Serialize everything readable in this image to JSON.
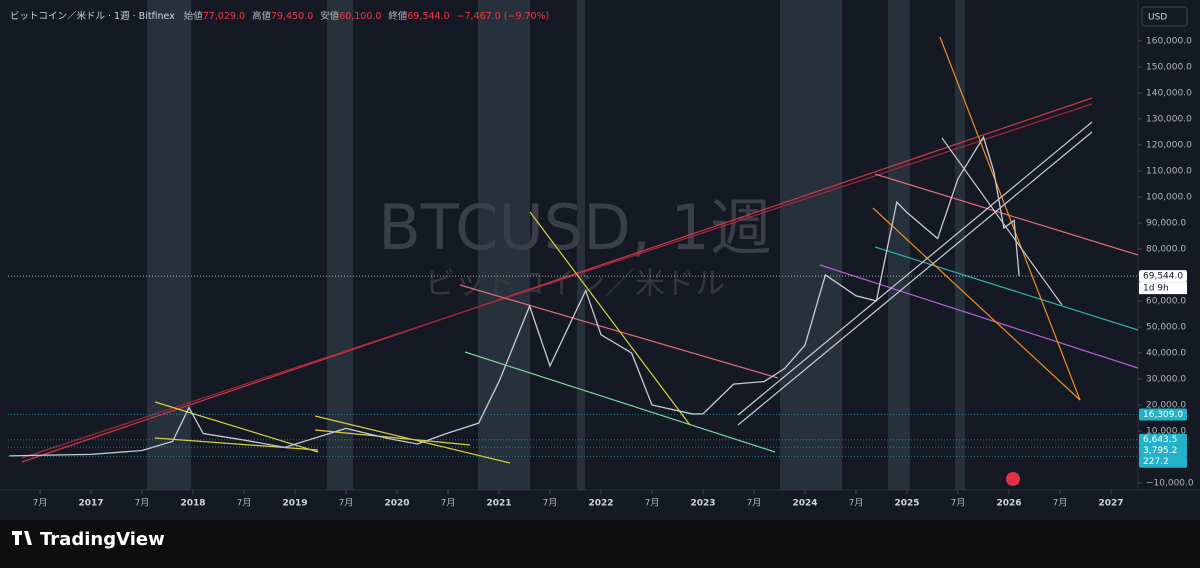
{
  "chart_data": {
    "type": "line",
    "header": {
      "symbol": "ビットコイン／米ドル · 1週 · Bitfinex",
      "ohlc": [
        {
          "label": "始値",
          "value": "77,029.0"
        },
        {
          "label": "高値",
          "value": "79,450.0"
        },
        {
          "label": "安値",
          "value": "60,100.0"
        },
        {
          "label": "終値",
          "value": "69,544.0"
        }
      ],
      "change": "−7,467.0 (−9.70%)"
    },
    "watermark": {
      "title": "BTCUSD, 1週",
      "subtitle": "ビットコイン／米ドル"
    },
    "currency": "USD",
    "brand": "TradingView",
    "x": [
      2016.2,
      2016.5,
      2017.0,
      2017.5,
      2017.8,
      2017.96,
      2018.1,
      2018.5,
      2018.9,
      2019.5,
      2019.9,
      2020.2,
      2020.5,
      2020.8,
      2021.0,
      2021.3,
      2021.5,
      2021.85,
      2022.0,
      2022.3,
      2022.5,
      2022.9,
      2023.0,
      2023.3,
      2023.6,
      2023.8,
      2024.0,
      2024.2,
      2024.5,
      2024.7,
      2024.9,
      2025.0,
      2025.3,
      2025.5,
      2025.75,
      2025.85,
      2025.95,
      2026.05,
      2026.1
    ],
    "series": [
      {
        "name": "BTCUSD",
        "color": "#c8cbd3",
        "values": [
          420,
          650,
          1000,
          2500,
          6000,
          19000,
          9000,
          6500,
          3700,
          11000,
          7200,
          5000,
          9200,
          13000,
          29000,
          58000,
          35000,
          64000,
          47000,
          40000,
          20000,
          16500,
          16600,
          28000,
          29000,
          34000,
          43000,
          70000,
          62000,
          60000,
          98000,
          94000,
          84000,
          107000,
          123000,
          110000,
          88000,
          91000,
          69544
        ]
      }
    ],
    "shaded_ranges": [
      [
        2017.549,
        2017.98
      ],
      [
        2019.314,
        2019.569
      ],
      [
        2020.794,
        2021.304
      ],
      [
        2021.765,
        2021.843
      ],
      [
        2023.755,
        2024.363
      ],
      [
        2024.814,
        2025.029
      ],
      [
        2025.471,
        2025.569
      ]
    ],
    "levels": [
      {
        "value": 69544,
        "label": "69,544.0",
        "color": "#ffffff"
      },
      {
        "value": 16309,
        "label": "16,309.0",
        "color": "#22b3c9"
      },
      {
        "value": 6643.5,
        "label": "6,643.5",
        "color": "#22b3c9"
      },
      {
        "value": 3795.2,
        "label": "3,795.2",
        "color": "#22b3c9"
      },
      {
        "value": 227.2,
        "label": "227.2",
        "color": "#22b3c9"
      }
    ],
    "countdown": "1d 9h",
    "xlim": [
      2016.186,
      2027.265
    ],
    "xticks": [
      {
        "value": 2016.5,
        "label": "7月"
      },
      2017,
      {
        "value": 2017.5,
        "label": "7月"
      },
      2018,
      {
        "value": 2018.5,
        "label": "7月"
      },
      2019,
      {
        "value": 2019.5,
        "label": "7月"
      },
      2020,
      {
        "value": 2020.5,
        "label": "7月"
      },
      2021,
      {
        "value": 2021.5,
        "label": "7月"
      },
      2022,
      {
        "value": 2022.5,
        "label": "7月"
      },
      2023,
      {
        "value": 2023.5,
        "label": "7月"
      },
      2024,
      {
        "value": 2024.5,
        "label": "7月"
      },
      2025,
      {
        "value": 2025.5,
        "label": "7月"
      },
      2026,
      {
        "value": 2026.5,
        "label": "7月"
      },
      2027
    ],
    "ylim": [
      -12700,
      173800
    ],
    "yticks": [
      {
        "value": -10000,
        "label": "−10,000.0"
      },
      {
        "value": 10000,
        "label": "10,000.0"
      },
      {
        "value": 20000,
        "label": "20,000.0"
      },
      {
        "value": 30000,
        "label": "30,000.0"
      },
      {
        "value": 40000,
        "label": "40,000.0"
      },
      {
        "value": 50000,
        "label": "50,000.0"
      },
      {
        "value": 60000,
        "label": "60,000.0"
      },
      {
        "value": 70000,
        "label": "70,000.0"
      },
      {
        "value": 80000,
        "label": "80,000.0"
      },
      {
        "value": 90000,
        "label": "90,000.0"
      },
      {
        "value": 100000,
        "label": "100,000.0"
      },
      {
        "value": 110000,
        "label": "110,000.0"
      },
      {
        "value": 120000,
        "label": "120,000.0"
      },
      {
        "value": 130000,
        "label": "130,000.0"
      },
      {
        "value": 140000,
        "label": "140,000.0"
      },
      {
        "value": 150000,
        "label": "150,000.0"
      },
      {
        "value": 160000,
        "label": "160,000.0"
      }
    ]
  }
}
